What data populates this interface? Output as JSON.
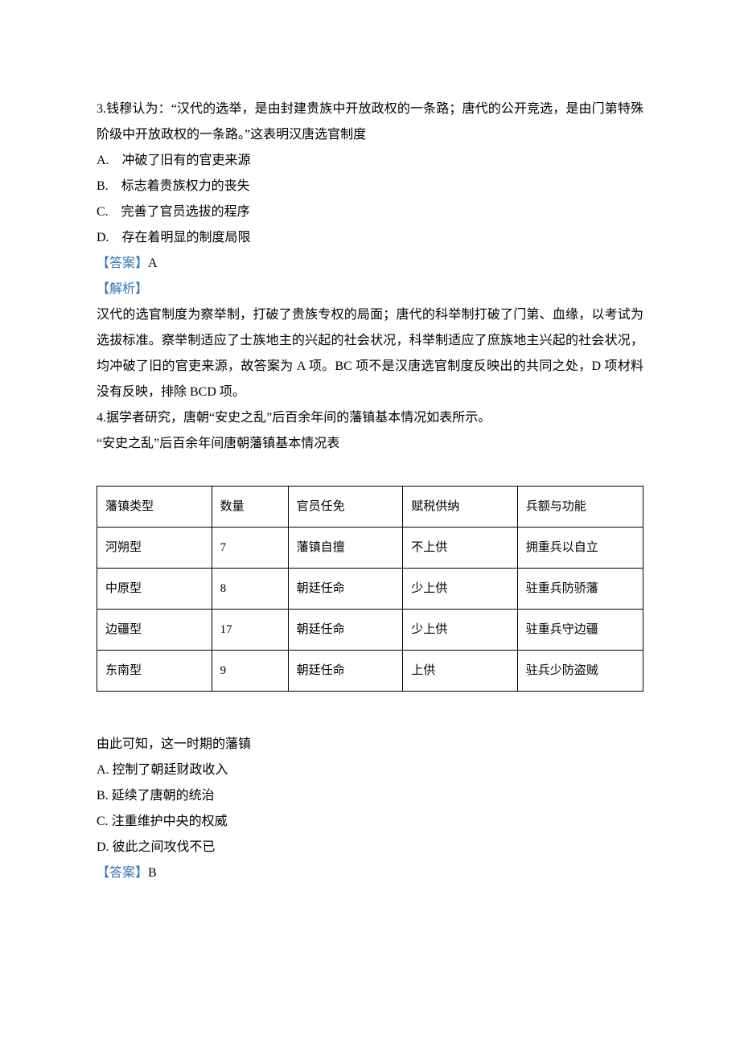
{
  "q3": {
    "stem": "3.钱穆认为：“汉代的选举，是由封建贵族中开放政权的一条路；唐代的公开竞选，是由门第特殊阶级中开放政权的一条路。”这表明汉唐选官制度",
    "options": {
      "A": "A. 冲破了旧有的官吏来源",
      "B": "B. 标志着贵族权力的丧失",
      "C": "C. 完善了官员选拔的程序",
      "D": "D. 存在着明显的制度局限"
    },
    "answer_label": "【答案】",
    "answer_value": "A",
    "analysis_label": "【解析】",
    "analysis_text": "汉代的选官制度为察举制，打破了贵族专权的局面；唐代的科举制打破了门第、血缘，以考试为选拔标准。察举制适应了士族地主的兴起的社会状况，科举制适应了庶族地主兴起的社会状况，均冲破了旧的官吏来源，故答案为 A 项。BC 项不是汉唐选官制度反映出的共同之处，D 项材料没有反映，排除 BCD 项。"
  },
  "q4": {
    "stem": "4.据学者研究，唐朝“安史之乱”后百余年间的藩镇基本情况如表所示。",
    "table_title": "“安史之乱”后百余年间唐朝藩镇基本情况表",
    "table": {
      "header": [
        "藩镇类型",
        "数量",
        "官员任免",
        "赋税供纳",
        "兵额与功能"
      ],
      "rows": [
        [
          "河朔型",
          "7",
          "藩镇自擅",
          "不上供",
          "拥重兵以自立"
        ],
        [
          "中原型",
          "8",
          "朝廷任命",
          "少上供",
          "驻重兵防骄藩"
        ],
        [
          "边疆型",
          "17",
          "朝廷任命",
          "少上供",
          "驻重兵守边疆"
        ],
        [
          "东南型",
          "9",
          "朝廷任命",
          "上供",
          "驻兵少防盗贼"
        ]
      ]
    },
    "lead_out": "由此可知，这一时期的藩镇",
    "options": {
      "A": "A.  控制了朝廷财政收入",
      "B": "B.  延续了唐朝的统治",
      "C": "C.  注重维护中央的权威",
      "D": "D.  彼此之间攻伐不已"
    },
    "answer_label": "【答案】",
    "answer_value": "B"
  },
  "colors": {
    "label_color": "#2e75b6",
    "text_color": "#000000",
    "border_color": "#000000",
    "background": "#ffffff"
  }
}
